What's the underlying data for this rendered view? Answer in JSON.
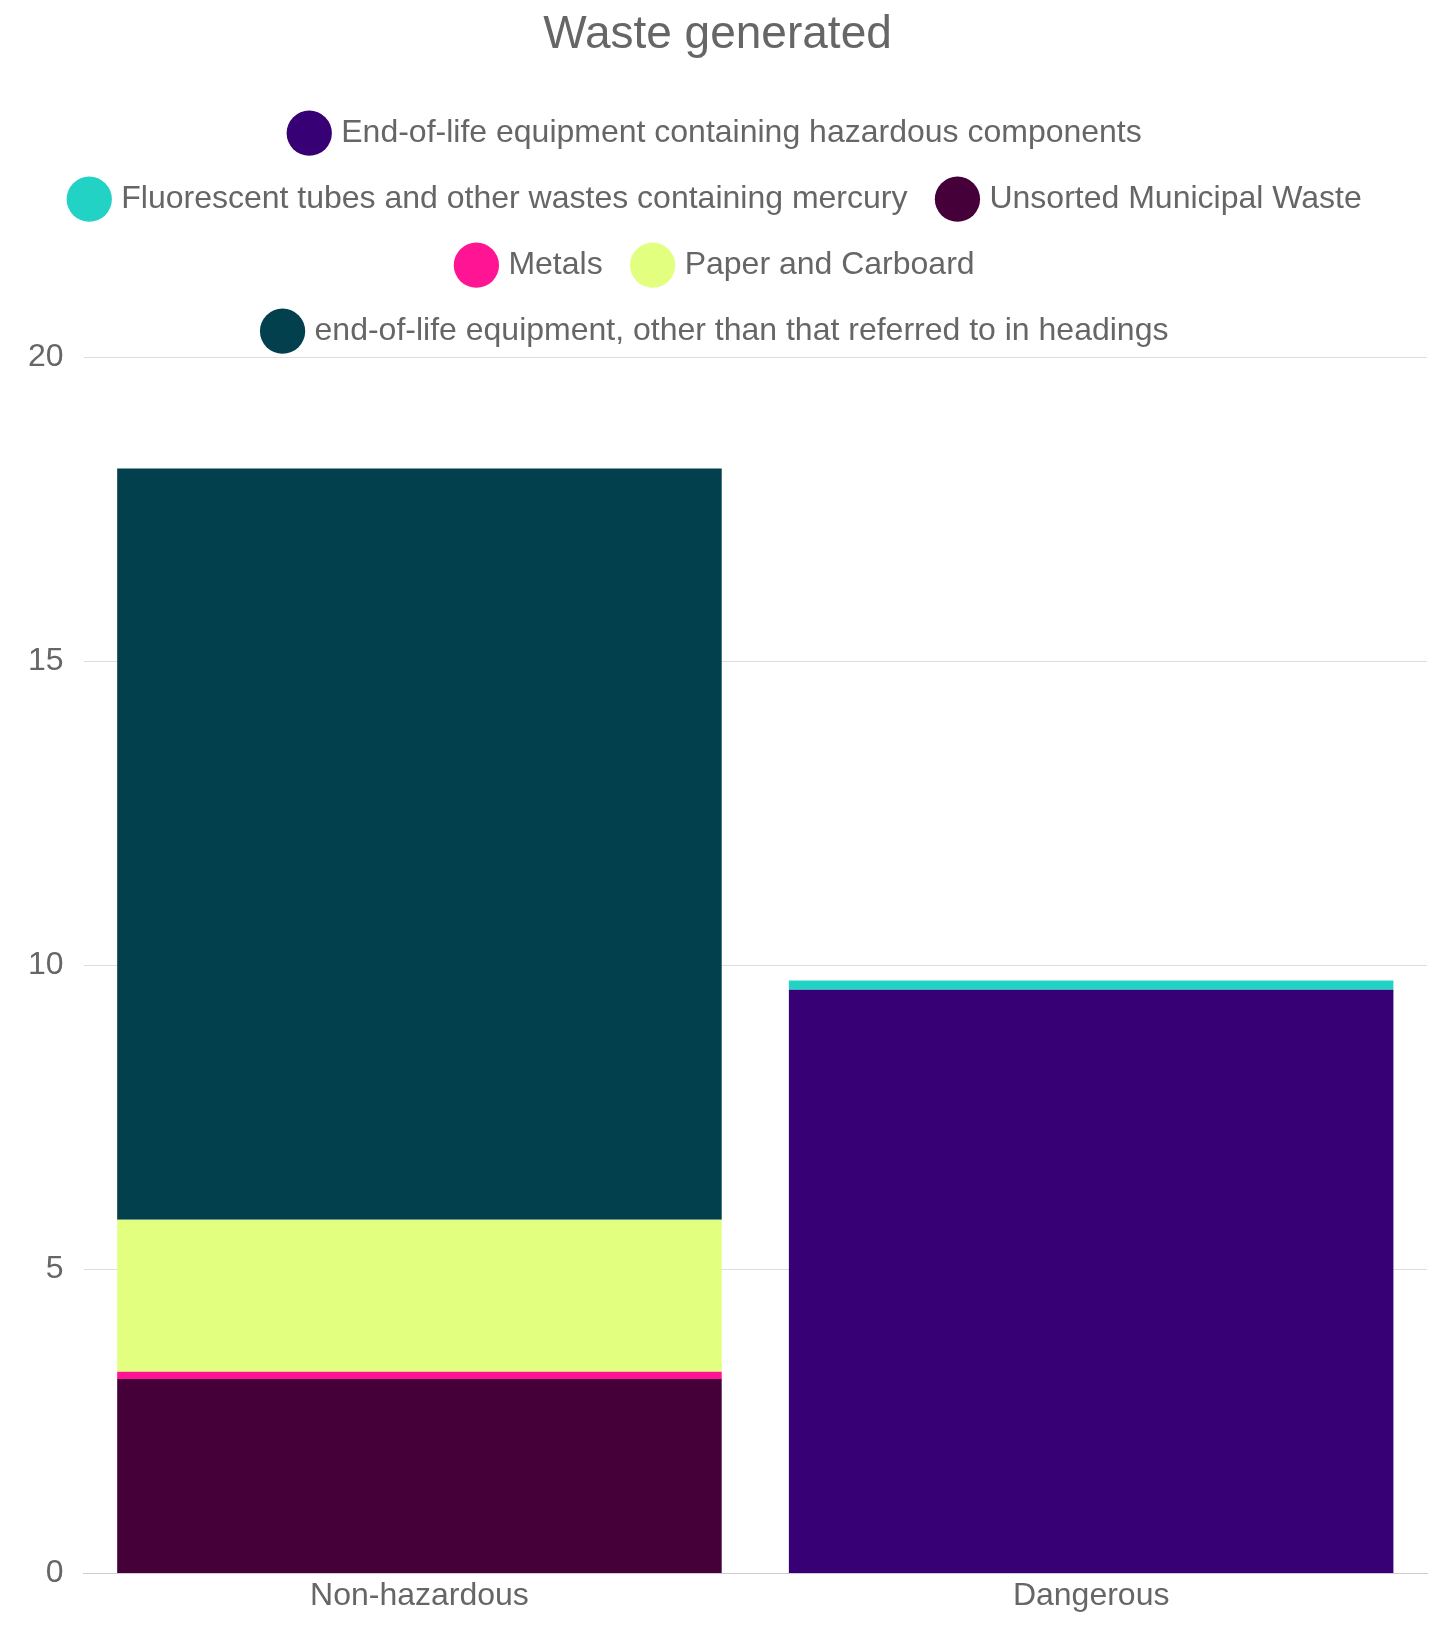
{
  "chart_data": {
    "type": "bar",
    "title": "Waste generated",
    "categories": [
      "Non-hazardous",
      "Dangerous"
    ],
    "stacked": true,
    "series": [
      {
        "name": "End-of-life equipment containing hazardous components",
        "color": "#370075",
        "values": [
          null,
          9.6
        ]
      },
      {
        "name": "Fluorescent tubes and other wastes containing mercury",
        "color": "#22d3c5",
        "values": [
          null,
          0.15
        ]
      },
      {
        "name": "Unsorted Municipal Waste",
        "color": "#45003a",
        "values": [
          3.2,
          null
        ]
      },
      {
        "name": "Metals",
        "color": "#ff1493",
        "values": [
          0.12,
          null
        ]
      },
      {
        "name": "Paper and Carboard",
        "color": "#e2ff7f",
        "values": [
          2.5,
          null
        ]
      },
      {
        "name": "end-of-life equipment, other than that referred to in headings",
        "color": "#02404d",
        "values": [
          12.35,
          null
        ]
      }
    ],
    "ylim": [
      0,
      20
    ],
    "yticks": [
      0,
      5,
      10,
      15,
      20
    ],
    "grid": "y",
    "legend": "top"
  }
}
